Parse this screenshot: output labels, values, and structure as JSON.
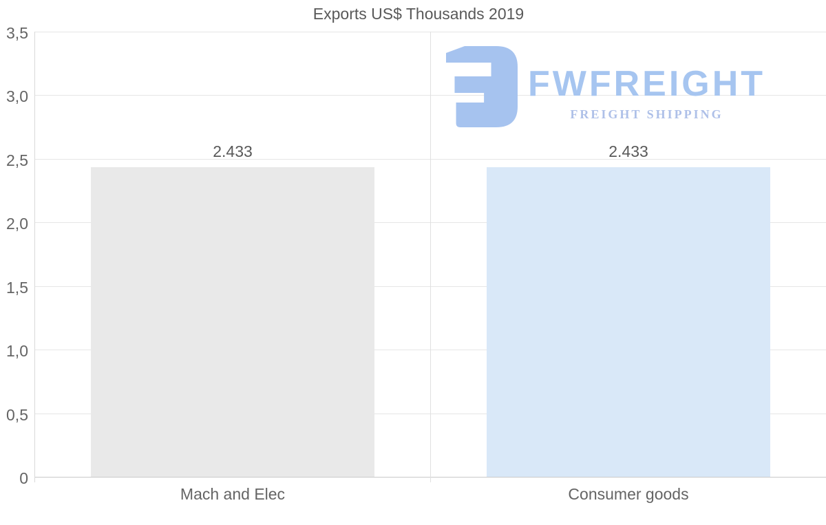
{
  "title": "Exports US$ Thousands 2019",
  "watermark": {
    "wordmark": "FWFREIGHT",
    "tagline": "FREIGHT SHIPPING",
    "mark_color": "#a6c3ef",
    "wordmark_color": "#a6c5f0",
    "tagline_color": "#aec0e8"
  },
  "colors": {
    "title_text": "#595959",
    "axis_text": "#646464",
    "gridline": "#e6e6e6",
    "separator_line": "#e0e0e0",
    "axis_line": "#d9d9d9",
    "baseline": "#c9c9c9",
    "bar_gray": "#e9e9e9",
    "bar_blue": "#d9e8f8"
  },
  "chart_data": {
    "type": "bar",
    "title": "Exports US$ Thousands 2019",
    "categories": [
      "Mach and Elec",
      "Consumer goods"
    ],
    "values": [
      2.433,
      2.433
    ],
    "value_labels": [
      "2.433",
      "2.433"
    ],
    "bar_colors": [
      "#e9e9e9",
      "#d9e8f8"
    ],
    "ylim": [
      0,
      3.5
    ],
    "yticks": [
      0,
      0.5,
      1.0,
      1.5,
      2.0,
      2.5,
      3.0,
      3.5
    ],
    "ytick_labels": [
      "0",
      "0,5",
      "1,0",
      "1,5",
      "2,0",
      "2,5",
      "3,0",
      "3,5"
    ],
    "xlabel": "",
    "ylabel": "",
    "grid": true,
    "legend": "none",
    "number_format": "European style: comma decimals on axis ticks, dot thousands separator on bar labels (2.433 = 2,433 US$ thousands)"
  }
}
